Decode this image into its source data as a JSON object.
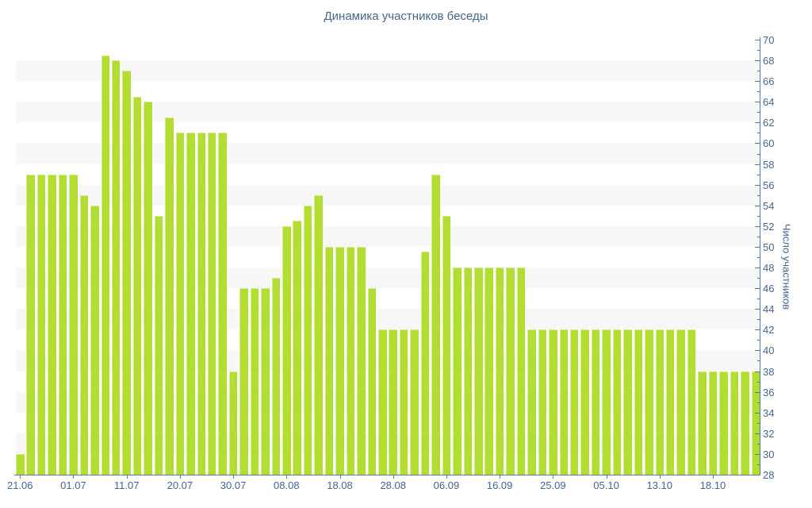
{
  "chart_data": {
    "type": "bar",
    "title": "Динамика участников беседы",
    "ylabel": "Число участников",
    "xlabel": "",
    "ylim": [
      28,
      70
    ],
    "y_tick_step": 2,
    "y_minor_tick_step": 1,
    "grid": "alternating-horizontal-bands",
    "legend_position": "none",
    "values": [
      30,
      57,
      57,
      57,
      57,
      57,
      55,
      54,
      68.5,
      68,
      67,
      64.5,
      64,
      53,
      62.5,
      61,
      61,
      61,
      61,
      61,
      38,
      46,
      46,
      46,
      47,
      52,
      52.5,
      54,
      55,
      50,
      50,
      50,
      50,
      46,
      42,
      42,
      42,
      42,
      49.5,
      57,
      53,
      48,
      48,
      48,
      48,
      48,
      48,
      48,
      42,
      42,
      42,
      42,
      42,
      42,
      42,
      42,
      42,
      42,
      42,
      42,
      42,
      42,
      42,
      42,
      38,
      38,
      38,
      38,
      38,
      38
    ],
    "x_tick_labels": [
      "21.06",
      "01.07",
      "11.07",
      "20.07",
      "30.07",
      "08.08",
      "18.08",
      "28.08",
      "06.09",
      "16.09",
      "25.09",
      "05.10",
      "13.10",
      "18.10"
    ],
    "x_tick_value_indices": [
      0,
      5,
      10,
      15,
      20,
      25,
      30,
      35,
      40,
      45,
      50,
      55,
      60,
      65
    ],
    "colors": {
      "bar": "#b2dd32",
      "axis": "#5b77a8",
      "tick_label": "#45668e",
      "title": "#45668e",
      "band": "#f7f7f7",
      "background": "#ffffff"
    }
  }
}
